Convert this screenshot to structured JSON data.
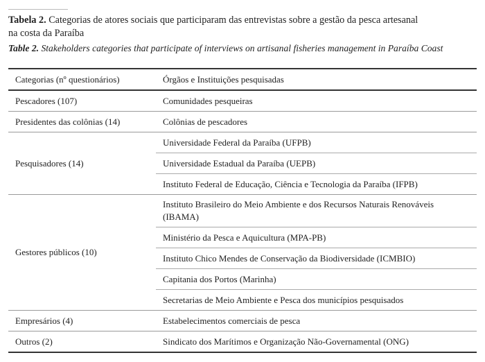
{
  "caption": {
    "pt_label": "Tabela 2.",
    "pt_line1": "Categorias de atores sociais que participaram das entrevistas sobre a gestão da pesca artesanal",
    "pt_line2": "na costa da Paraíba",
    "en_label": "Table 2.",
    "en_text": "Stakeholders categories that participate of interviews on artisanal fisheries management in Paraíba Coast"
  },
  "table": {
    "headers": [
      "Categorias (nº questionários)",
      "Órgãos e Instituições pesquisadas"
    ],
    "groups": [
      {
        "category": "Pescadores (107)",
        "items": [
          "Comunidades pesqueiras"
        ]
      },
      {
        "category": "Presidentes das colônias (14)",
        "items": [
          "Colônias de pescadores"
        ]
      },
      {
        "category": "Pesquisadores (14)",
        "items": [
          "Universidade Federal da Paraíba (UFPB)",
          "Universidade Estadual da Paraíba (UEPB)",
          "Instituto Federal de Educação, Ciência e Tecnologia da Paraíba (IFPB)"
        ]
      },
      {
        "category": "Gestores públicos (10)",
        "items": [
          "Instituto Brasileiro do Meio Ambiente e dos Recursos Naturais Renováveis (IBAMA)",
          "Ministério da Pesca e Aquicultura (MPA-PB)",
          "Instituto Chico Mendes de Conservação da Biodiversidade (ICMBIO)",
          "Capitania dos Portos (Marinha)",
          "Secretarias de Meio Ambiente e Pesca dos municípios pesquisados"
        ]
      },
      {
        "category": "Empresários (4)",
        "items": [
          "Estabelecimentos comerciais de pesca"
        ]
      },
      {
        "category": "Outros (2)",
        "items": [
          "Sindicato dos Marítimos e Organização Não-Governamental (ONG)"
        ]
      }
    ]
  }
}
